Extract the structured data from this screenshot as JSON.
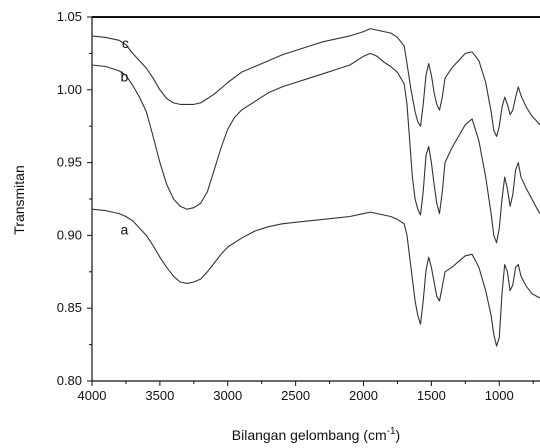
{
  "chart_data": {
    "type": "line",
    "title": "",
    "xlabel": "Bilangan gelombang (cm",
    "xlabel_sup": "-1",
    "xlabel_close": ")",
    "ylabel": "Transmitan",
    "xlim": [
      4000,
      700
    ],
    "ylim": [
      0.8,
      1.05
    ],
    "x_reversed": true,
    "x_ticks": [
      4000,
      3500,
      3000,
      2500,
      2000,
      1500,
      1000
    ],
    "x_tick_labels": [
      "4000",
      "3500",
      "3000",
      "2500",
      "2000",
      "1500",
      "1000"
    ],
    "y_ticks": [
      0.8,
      0.85,
      0.9,
      0.95,
      1.0,
      1.05
    ],
    "y_tick_labels": [
      "0.80",
      "0.85",
      "0.90",
      "0.95",
      "1.00",
      "1.05"
    ],
    "grid": false,
    "line_color": "#333333",
    "series": [
      {
        "name": "c",
        "points": [
          [
            4000,
            1.037
          ],
          [
            3900,
            1.036
          ],
          [
            3800,
            1.034
          ],
          [
            3750,
            1.031
          ],
          [
            3700,
            1.025
          ],
          [
            3650,
            1.02
          ],
          [
            3600,
            1.015
          ],
          [
            3550,
            1.008
          ],
          [
            3500,
            1.0
          ],
          [
            3450,
            0.994
          ],
          [
            3400,
            0.991
          ],
          [
            3350,
            0.99
          ],
          [
            3300,
            0.99
          ],
          [
            3250,
            0.99
          ],
          [
            3200,
            0.991
          ],
          [
            3100,
            0.997
          ],
          [
            3000,
            1.005
          ],
          [
            2900,
            1.012
          ],
          [
            2800,
            1.016
          ],
          [
            2700,
            1.02
          ],
          [
            2600,
            1.024
          ],
          [
            2500,
            1.027
          ],
          [
            2400,
            1.03
          ],
          [
            2300,
            1.033
          ],
          [
            2200,
            1.035
          ],
          [
            2100,
            1.037
          ],
          [
            2000,
            1.04
          ],
          [
            1950,
            1.042
          ],
          [
            1900,
            1.041
          ],
          [
            1850,
            1.04
          ],
          [
            1800,
            1.039
          ],
          [
            1750,
            1.036
          ],
          [
            1700,
            1.03
          ],
          [
            1680,
            1.018
          ],
          [
            1650,
            1.0
          ],
          [
            1620,
            0.985
          ],
          [
            1600,
            0.978
          ],
          [
            1580,
            0.975
          ],
          [
            1560,
            0.99
          ],
          [
            1540,
            1.01
          ],
          [
            1520,
            1.018
          ],
          [
            1500,
            1.01
          ],
          [
            1480,
            0.998
          ],
          [
            1460,
            0.99
          ],
          [
            1440,
            0.986
          ],
          [
            1420,
            0.995
          ],
          [
            1400,
            1.008
          ],
          [
            1350,
            1.015
          ],
          [
            1300,
            1.02
          ],
          [
            1250,
            1.025
          ],
          [
            1200,
            1.026
          ],
          [
            1150,
            1.02
          ],
          [
            1100,
            1.005
          ],
          [
            1060,
            0.985
          ],
          [
            1040,
            0.972
          ],
          [
            1020,
            0.968
          ],
          [
            1000,
            0.975
          ],
          [
            980,
            0.988
          ],
          [
            960,
            0.995
          ],
          [
            940,
            0.99
          ],
          [
            920,
            0.983
          ],
          [
            900,
            0.986
          ],
          [
            880,
            0.995
          ],
          [
            860,
            1.002
          ],
          [
            840,
            0.996
          ],
          [
            800,
            0.988
          ],
          [
            760,
            0.982
          ],
          [
            720,
            0.978
          ],
          [
            700,
            0.976
          ]
        ]
      },
      {
        "name": "b",
        "points": [
          [
            4000,
            1.017
          ],
          [
            3900,
            1.016
          ],
          [
            3800,
            1.013
          ],
          [
            3750,
            1.01
          ],
          [
            3700,
            1.003
          ],
          [
            3650,
            0.995
          ],
          [
            3600,
            0.985
          ],
          [
            3550,
            0.968
          ],
          [
            3500,
            0.95
          ],
          [
            3450,
            0.935
          ],
          [
            3400,
            0.925
          ],
          [
            3350,
            0.92
          ],
          [
            3300,
            0.918
          ],
          [
            3250,
            0.919
          ],
          [
            3200,
            0.922
          ],
          [
            3150,
            0.93
          ],
          [
            3100,
            0.945
          ],
          [
            3050,
            0.96
          ],
          [
            3000,
            0.973
          ],
          [
            2950,
            0.981
          ],
          [
            2900,
            0.986
          ],
          [
            2800,
            0.992
          ],
          [
            2700,
            0.998
          ],
          [
            2600,
            1.002
          ],
          [
            2500,
            1.005
          ],
          [
            2400,
            1.008
          ],
          [
            2300,
            1.011
          ],
          [
            2200,
            1.014
          ],
          [
            2100,
            1.017
          ],
          [
            2000,
            1.023
          ],
          [
            1950,
            1.025
          ],
          [
            1900,
            1.023
          ],
          [
            1850,
            1.019
          ],
          [
            1800,
            1.016
          ],
          [
            1750,
            1.012
          ],
          [
            1700,
            1.004
          ],
          [
            1680,
            0.99
          ],
          [
            1660,
            0.965
          ],
          [
            1640,
            0.94
          ],
          [
            1620,
            0.925
          ],
          [
            1600,
            0.918
          ],
          [
            1580,
            0.914
          ],
          [
            1560,
            0.93
          ],
          [
            1540,
            0.955
          ],
          [
            1520,
            0.961
          ],
          [
            1500,
            0.95
          ],
          [
            1480,
            0.935
          ],
          [
            1460,
            0.922
          ],
          [
            1440,
            0.915
          ],
          [
            1420,
            0.93
          ],
          [
            1400,
            0.95
          ],
          [
            1350,
            0.96
          ],
          [
            1300,
            0.968
          ],
          [
            1250,
            0.976
          ],
          [
            1200,
            0.98
          ],
          [
            1150,
            0.965
          ],
          [
            1100,
            0.94
          ],
          [
            1060,
            0.915
          ],
          [
            1040,
            0.9
          ],
          [
            1020,
            0.895
          ],
          [
            1000,
            0.905
          ],
          [
            980,
            0.925
          ],
          [
            960,
            0.94
          ],
          [
            940,
            0.932
          ],
          [
            920,
            0.92
          ],
          [
            900,
            0.928
          ],
          [
            880,
            0.945
          ],
          [
            860,
            0.95
          ],
          [
            840,
            0.94
          ],
          [
            800,
            0.932
          ],
          [
            760,
            0.925
          ],
          [
            720,
            0.918
          ],
          [
            700,
            0.915
          ]
        ]
      },
      {
        "name": "a",
        "points": [
          [
            4000,
            0.918
          ],
          [
            3900,
            0.917
          ],
          [
            3800,
            0.915
          ],
          [
            3750,
            0.913
          ],
          [
            3700,
            0.91
          ],
          [
            3650,
            0.905
          ],
          [
            3600,
            0.9
          ],
          [
            3550,
            0.893
          ],
          [
            3500,
            0.885
          ],
          [
            3450,
            0.878
          ],
          [
            3400,
            0.872
          ],
          [
            3350,
            0.868
          ],
          [
            3300,
            0.867
          ],
          [
            3250,
            0.868
          ],
          [
            3200,
            0.87
          ],
          [
            3150,
            0.875
          ],
          [
            3100,
            0.881
          ],
          [
            3050,
            0.887
          ],
          [
            3000,
            0.892
          ],
          [
            2900,
            0.898
          ],
          [
            2800,
            0.903
          ],
          [
            2700,
            0.906
          ],
          [
            2600,
            0.908
          ],
          [
            2500,
            0.909
          ],
          [
            2400,
            0.91
          ],
          [
            2300,
            0.911
          ],
          [
            2200,
            0.912
          ],
          [
            2100,
            0.913
          ],
          [
            2000,
            0.915
          ],
          [
            1950,
            0.916
          ],
          [
            1900,
            0.915
          ],
          [
            1850,
            0.914
          ],
          [
            1800,
            0.913
          ],
          [
            1750,
            0.911
          ],
          [
            1700,
            0.908
          ],
          [
            1680,
            0.9
          ],
          [
            1660,
            0.885
          ],
          [
            1640,
            0.87
          ],
          [
            1620,
            0.855
          ],
          [
            1600,
            0.845
          ],
          [
            1580,
            0.839
          ],
          [
            1560,
            0.855
          ],
          [
            1540,
            0.876
          ],
          [
            1520,
            0.885
          ],
          [
            1500,
            0.878
          ],
          [
            1480,
            0.868
          ],
          [
            1460,
            0.858
          ],
          [
            1440,
            0.855
          ],
          [
            1420,
            0.865
          ],
          [
            1400,
            0.875
          ],
          [
            1350,
            0.878
          ],
          [
            1300,
            0.882
          ],
          [
            1250,
            0.886
          ],
          [
            1200,
            0.887
          ],
          [
            1150,
            0.878
          ],
          [
            1100,
            0.862
          ],
          [
            1060,
            0.845
          ],
          [
            1040,
            0.832
          ],
          [
            1020,
            0.824
          ],
          [
            1000,
            0.83
          ],
          [
            980,
            0.86
          ],
          [
            960,
            0.88
          ],
          [
            940,
            0.875
          ],
          [
            920,
            0.862
          ],
          [
            900,
            0.866
          ],
          [
            880,
            0.878
          ],
          [
            860,
            0.88
          ],
          [
            840,
            0.872
          ],
          [
            800,
            0.865
          ],
          [
            760,
            0.86
          ],
          [
            720,
            0.858
          ],
          [
            700,
            0.857
          ]
        ]
      }
    ],
    "series_labels": [
      {
        "text": "c",
        "x": 3780,
        "y": 1.032
      },
      {
        "text": "b",
        "x": 3790,
        "y": 1.009
      },
      {
        "text": "a",
        "x": 3790,
        "y": 0.904
      }
    ]
  }
}
